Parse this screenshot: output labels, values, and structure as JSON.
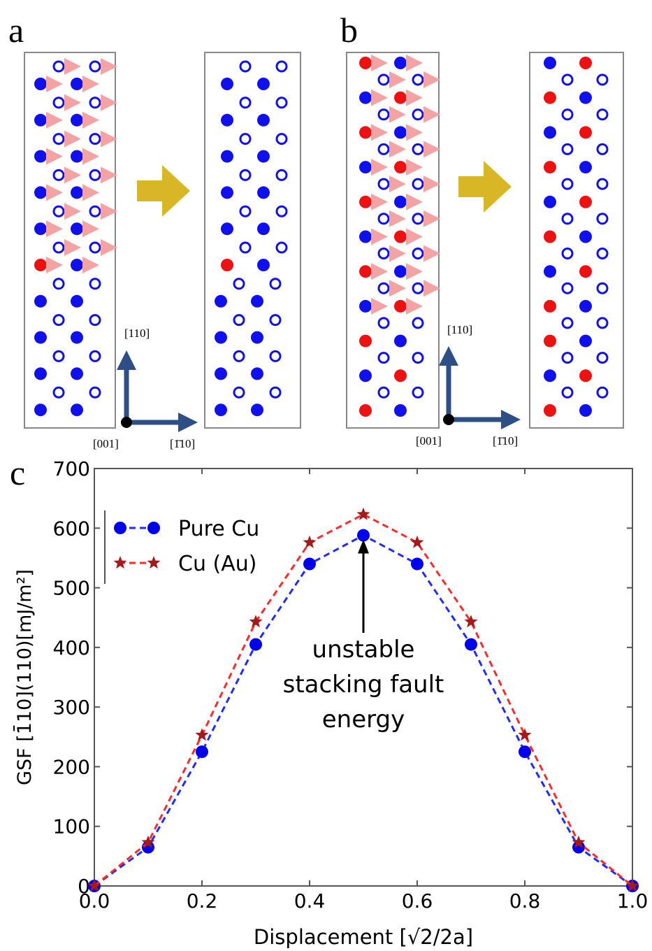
{
  "diagram_a": {
    "label": "a",
    "axis_labels": {
      "up": "[110]",
      "origin": "[001]",
      "right": "[1̄10]"
    }
  },
  "diagram_b": {
    "label": "b",
    "axis_labels": {
      "up": "[110]",
      "origin": "[001]",
      "right": "[1̄10]"
    }
  },
  "chart_data": {
    "type": "line",
    "panel_label": "c",
    "x_label": "Displacement [√2/2a]",
    "y_label": "GSF [1̄10](110)[mJ/m²]",
    "x": [
      0,
      0.1,
      0.2,
      0.3,
      0.4,
      0.5,
      0.6,
      0.7,
      0.8,
      0.9,
      1.0
    ],
    "series": [
      {
        "name": "Pure Cu",
        "color": "#1f2bff",
        "marker": "circle",
        "marker_color": "#0000ee",
        "values": [
          0,
          65,
          225,
          405,
          540,
          588,
          540,
          405,
          225,
          65,
          0
        ]
      },
      {
        "name": "Cu (Au)",
        "color": "#ff2a2a",
        "marker": "star",
        "marker_color": "#a31a1a",
        "values": [
          0,
          73,
          253,
          443,
          576,
          623,
          576,
          443,
          253,
          73,
          0
        ]
      }
    ],
    "xlim": [
      0,
      1.0
    ],
    "xticks": [
      {
        "value": 0,
        "label": "0.0"
      },
      {
        "value": 0.2,
        "label": "0.2"
      },
      {
        "value": 0.4,
        "label": "0.4"
      },
      {
        "value": 0.6,
        "label": "0.6"
      },
      {
        "value": 0.8,
        "label": "0.8"
      },
      {
        "value": 1.0,
        "label": "1.0"
      }
    ],
    "ylim": [
      0,
      700
    ],
    "yticks": [
      0,
      100,
      200,
      300,
      400,
      500,
      600,
      700
    ],
    "annotation": {
      "lines": [
        "unstable",
        "stacking fault",
        "energy"
      ],
      "x": 0.5,
      "y": 588
    }
  }
}
